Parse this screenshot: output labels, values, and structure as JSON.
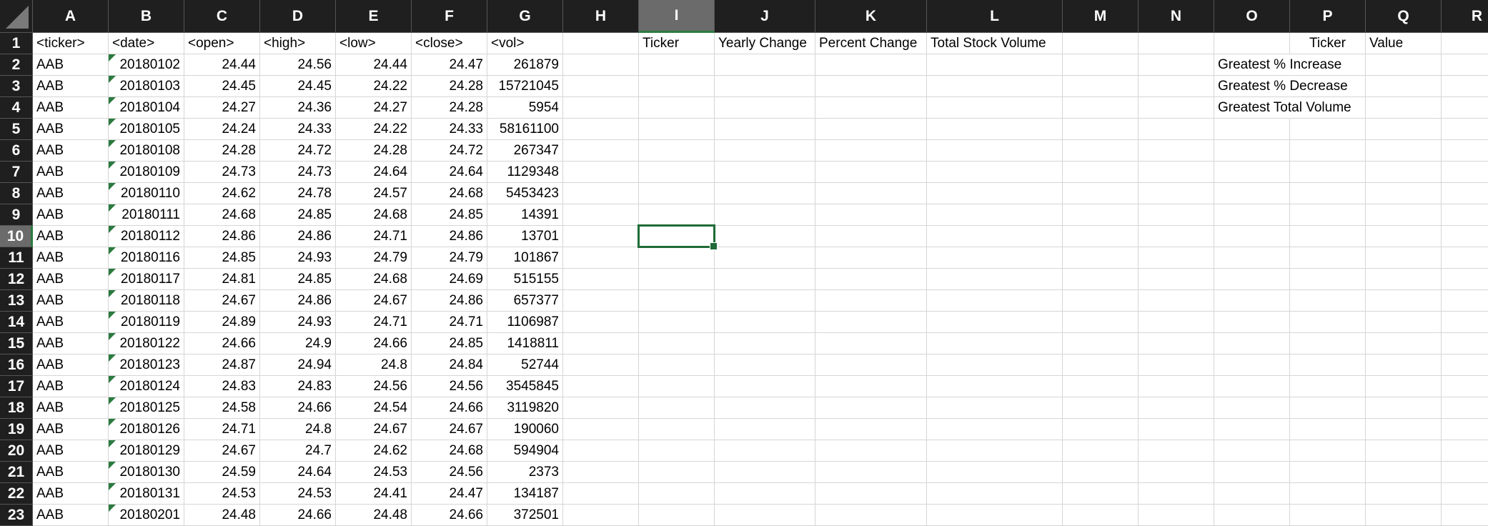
{
  "columns": [
    "A",
    "B",
    "C",
    "D",
    "E",
    "F",
    "G",
    "H",
    "I",
    "J",
    "K",
    "L",
    "M",
    "N",
    "O",
    "P",
    "Q",
    "R"
  ],
  "active_column": "I",
  "active_row": 10,
  "headers_row": [
    "<ticker>",
    "<date>",
    "<open>",
    "<high>",
    "<low>",
    "<close>",
    "<vol>"
  ],
  "data_rows": [
    [
      "AAB",
      "20180102",
      "24.44",
      "24.56",
      "24.44",
      "24.47",
      "261879"
    ],
    [
      "AAB",
      "20180103",
      "24.45",
      "24.45",
      "24.22",
      "24.28",
      "15721045"
    ],
    [
      "AAB",
      "20180104",
      "24.27",
      "24.36",
      "24.27",
      "24.28",
      "5954"
    ],
    [
      "AAB",
      "20180105",
      "24.24",
      "24.33",
      "24.22",
      "24.33",
      "58161100"
    ],
    [
      "AAB",
      "20180108",
      "24.28",
      "24.72",
      "24.28",
      "24.72",
      "267347"
    ],
    [
      "AAB",
      "20180109",
      "24.73",
      "24.73",
      "24.64",
      "24.64",
      "1129348"
    ],
    [
      "AAB",
      "20180110",
      "24.62",
      "24.78",
      "24.57",
      "24.68",
      "5453423"
    ],
    [
      "AAB",
      "20180111",
      "24.68",
      "24.85",
      "24.68",
      "24.85",
      "14391"
    ],
    [
      "AAB",
      "20180112",
      "24.86",
      "24.86",
      "24.71",
      "24.86",
      "13701"
    ],
    [
      "AAB",
      "20180116",
      "24.85",
      "24.93",
      "24.79",
      "24.79",
      "101867"
    ],
    [
      "AAB",
      "20180117",
      "24.81",
      "24.85",
      "24.68",
      "24.69",
      "515155"
    ],
    [
      "AAB",
      "20180118",
      "24.67",
      "24.86",
      "24.67",
      "24.86",
      "657377"
    ],
    [
      "AAB",
      "20180119",
      "24.89",
      "24.93",
      "24.71",
      "24.71",
      "1106987"
    ],
    [
      "AAB",
      "20180122",
      "24.66",
      "24.9",
      "24.66",
      "24.85",
      "1418811"
    ],
    [
      "AAB",
      "20180123",
      "24.87",
      "24.94",
      "24.8",
      "24.84",
      "52744"
    ],
    [
      "AAB",
      "20180124",
      "24.83",
      "24.83",
      "24.56",
      "24.56",
      "3545845"
    ],
    [
      "AAB",
      "20180125",
      "24.58",
      "24.66",
      "24.54",
      "24.66",
      "3119820"
    ],
    [
      "AAB",
      "20180126",
      "24.71",
      "24.8",
      "24.67",
      "24.67",
      "190060"
    ],
    [
      "AAB",
      "20180129",
      "24.67",
      "24.7",
      "24.62",
      "24.68",
      "594904"
    ],
    [
      "AAB",
      "20180130",
      "24.59",
      "24.64",
      "24.53",
      "24.56",
      "2373"
    ],
    [
      "AAB",
      "20180131",
      "24.53",
      "24.53",
      "24.41",
      "24.47",
      "134187"
    ],
    [
      "AAB",
      "20180201",
      "24.48",
      "24.66",
      "24.48",
      "24.66",
      "372501"
    ]
  ],
  "summary_headers": {
    "ticker": "Ticker",
    "yearly_change": "Yearly Change",
    "percent_change": "Percent Change",
    "total_volume": "Total Stock Volume"
  },
  "greatest_table": {
    "ticker_header": "Ticker",
    "value_header": "Value",
    "labels": [
      "Greatest % Increase",
      "Greatest % Decrease",
      "Greatest Total Volume"
    ]
  },
  "colors": {
    "header_bg": "#1f1f1f",
    "header_active_bg": "#6b6b6b",
    "selection": "#1f6b36",
    "gridline": "#d6d6d6"
  }
}
